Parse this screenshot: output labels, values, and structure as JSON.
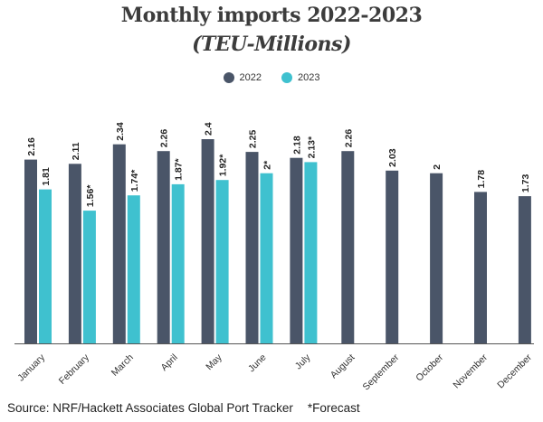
{
  "chart_data": {
    "type": "bar",
    "title": "Monthly imports 2022-2023",
    "subtitle": "(TEU-Millions)",
    "categories": [
      "January",
      "February",
      "March",
      "April",
      "May",
      "June",
      "July",
      "August",
      "September",
      "October",
      "November",
      "December"
    ],
    "series": [
      {
        "name": "2022",
        "color": "#4a5568",
        "values": [
          2.16,
          2.11,
          2.34,
          2.26,
          2.4,
          2.25,
          2.18,
          2.26,
          2.03,
          2,
          1.78,
          1.73
        ],
        "labels": [
          "2.16",
          "2.11",
          "2.34",
          "2.26",
          "2.4",
          "2.25",
          "2.18",
          "2.26",
          "2.03",
          "2",
          "1.78",
          "1.73"
        ]
      },
      {
        "name": "2023",
        "color": "#3fc1cf",
        "values": [
          1.81,
          1.56,
          1.74,
          1.87,
          1.92,
          2,
          2.13,
          null,
          null,
          null,
          null,
          null
        ],
        "labels": [
          "1.81",
          "1.56*",
          "1.74*",
          "1.87*",
          "1.92*",
          "2*",
          "2.13*",
          null,
          null,
          null,
          null,
          null
        ]
      }
    ],
    "ylim": [
      0,
      2.4
    ],
    "legend_position": "top-center",
    "grid": false
  },
  "footer": {
    "source": "Source: NRF/Hackett Associates Global Port Tracker",
    "note": "*Forecast"
  }
}
